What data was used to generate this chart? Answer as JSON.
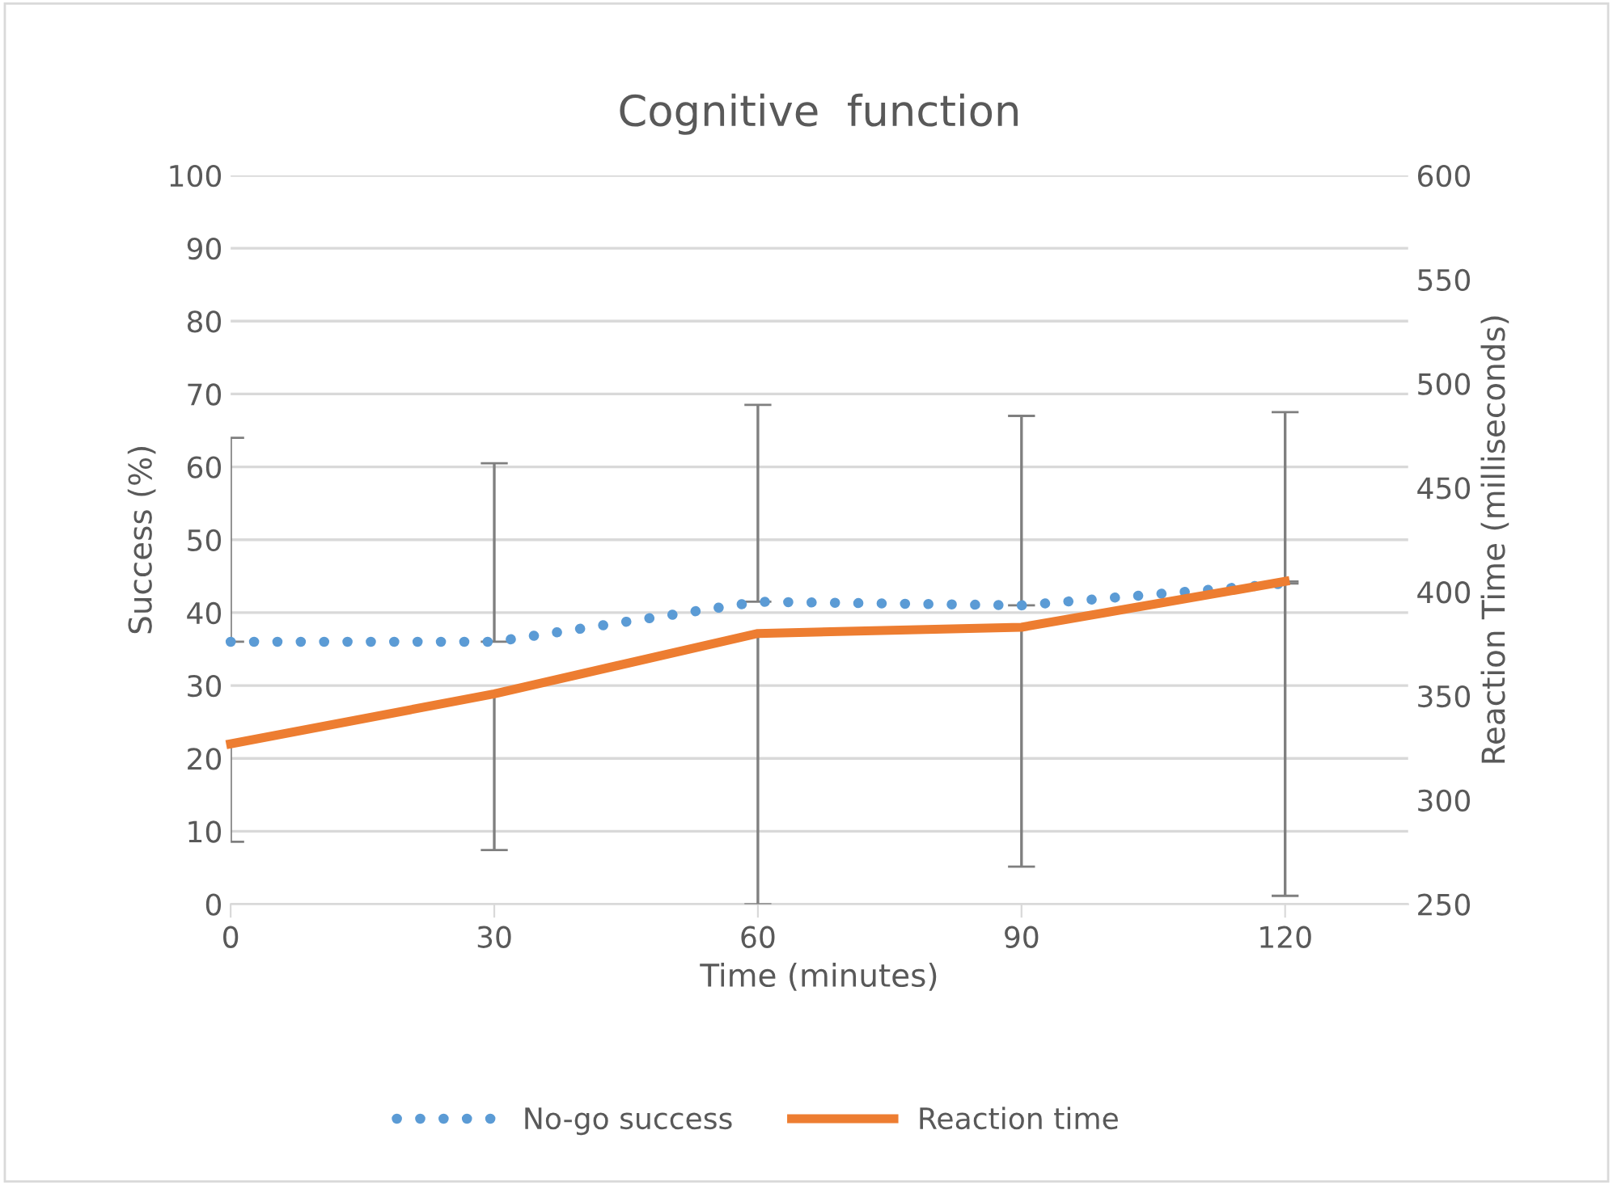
{
  "chart_data": {
    "type": "line",
    "title": "Cognitive  function",
    "xlabel": "Time (minutes)",
    "ylabel": "Success (%)",
    "y2label": "Reaction Time (milliseconds)",
    "x": [
      0,
      30,
      60,
      90,
      120
    ],
    "xlim": [
      0,
      134
    ],
    "xticks": [
      0,
      30,
      60,
      90,
      120
    ],
    "ylim": [
      0,
      100
    ],
    "yticks": [
      0,
      10,
      20,
      30,
      40,
      50,
      60,
      70,
      80,
      90,
      100
    ],
    "y2lim": [
      250,
      600
    ],
    "y2ticks": [
      250,
      300,
      350,
      400,
      450,
      500,
      550,
      600
    ],
    "grid": "y",
    "legend": "bottom",
    "series": [
      {
        "name": "No-go success",
        "color": "#5b9bd5",
        "line_style": "dotted",
        "values": [
          36,
          36,
          41.5,
          41,
          44
        ],
        "errors": [
          [
            36,
            64
          ],
          [
            36,
            60.5
          ],
          [
            41.5,
            68.5
          ],
          [
            41,
            67
          ],
          [
            44,
            67.5
          ]
        ]
      },
      {
        "name": "Reaction time",
        "color": "#ed7d31",
        "line_style": "solid",
        "axis": "y2",
        "values": [
          327,
          351,
          380,
          383,
          405
        ],
        "errors": [
          [
            280,
            327
          ],
          [
            276,
            351
          ],
          [
            250,
            380
          ],
          [
            268,
            383
          ],
          [
            254,
            405
          ]
        ]
      }
    ]
  }
}
